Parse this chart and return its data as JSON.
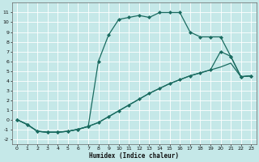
{
  "xlabel": "Humidex (Indice chaleur)",
  "xlim": [
    -0.5,
    23.5
  ],
  "ylim": [
    -2.5,
    12
  ],
  "xticks": [
    0,
    1,
    2,
    3,
    4,
    5,
    6,
    7,
    8,
    9,
    10,
    11,
    12,
    13,
    14,
    15,
    16,
    17,
    18,
    19,
    20,
    21,
    22,
    23
  ],
  "yticks": [
    -2,
    -1,
    0,
    1,
    2,
    3,
    4,
    5,
    6,
    7,
    8,
    9,
    10,
    11
  ],
  "background_color": "#c5e8e8",
  "grid_color": "#ffffff",
  "line_color": "#1a6b60",
  "series": [
    {
      "x": [
        0,
        1,
        2,
        3,
        4,
        5,
        6,
        7,
        8,
        9,
        10,
        11,
        12,
        13,
        14,
        15,
        16,
        17,
        18,
        19,
        20,
        21,
        22,
        23
      ],
      "y": [
        0.0,
        -0.5,
        -1.2,
        -1.3,
        -1.3,
        -1.2,
        -1.0,
        -0.7,
        -0.3,
        0.3,
        0.9,
        1.5,
        2.1,
        2.7,
        3.2,
        3.7,
        4.1,
        4.5,
        4.8,
        5.1,
        5.4,
        5.8,
        4.4,
        4.5
      ],
      "marker": "None",
      "linestyle": "-",
      "linewidth": 0.9
    },
    {
      "x": [
        0,
        1,
        2,
        3,
        4,
        5,
        6,
        7,
        8,
        9,
        10,
        11,
        12,
        13,
        14,
        15,
        16,
        17,
        18,
        19,
        20,
        21,
        22,
        23
      ],
      "y": [
        0.0,
        -0.5,
        -1.2,
        -1.3,
        -1.3,
        -1.2,
        -1.0,
        -0.7,
        6.0,
        8.7,
        10.3,
        10.5,
        10.7,
        10.5,
        11.0,
        11.0,
        11.0,
        9.0,
        8.5,
        8.5,
        8.5,
        6.5,
        4.4,
        4.5
      ],
      "marker": "D",
      "markersize": 2.0,
      "linestyle": "-",
      "linewidth": 0.9
    },
    {
      "x": [
        0,
        1,
        2,
        3,
        4,
        5,
        6,
        7,
        8,
        9,
        10,
        11,
        12,
        13,
        14,
        15,
        16,
        17,
        18,
        19,
        20,
        21,
        22,
        23
      ],
      "y": [
        0.0,
        -0.5,
        -1.2,
        -1.3,
        -1.3,
        -1.2,
        -1.0,
        -0.7,
        -0.3,
        0.3,
        0.9,
        1.5,
        2.1,
        2.7,
        3.2,
        3.7,
        4.1,
        4.5,
        4.8,
        5.1,
        7.0,
        6.5,
        4.4,
        4.5
      ],
      "marker": "D",
      "markersize": 2.0,
      "linestyle": "-",
      "linewidth": 0.9
    }
  ]
}
